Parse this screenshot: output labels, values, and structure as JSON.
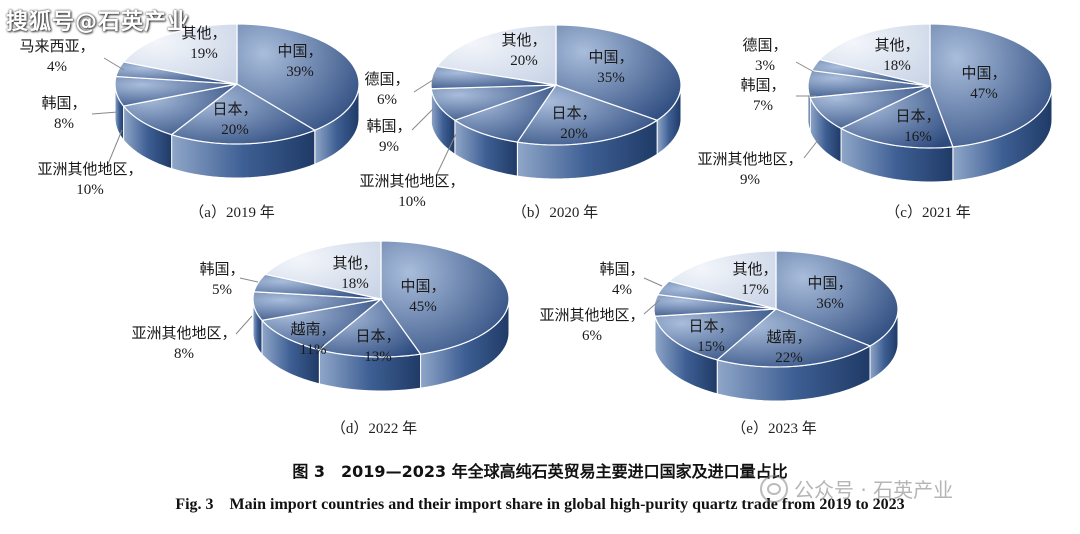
{
  "watermark_top": "搜狐号@石英产业",
  "watermark_bottom": "公众号 · 石英产业",
  "caption_cn": "图 3　2019—2023 年全球高纯石英贸易主要进口国家及进口量占比",
  "caption_en": "Fig. 3　Main import countries and their import share in global high-purity quartz trade from 2019 to 2023",
  "colors": {
    "slice_light": "#a9bddb",
    "slice_dark": "#2c4a7e",
    "top_other": "#e6ebf3",
    "edge": "#ffffff"
  },
  "chart_data": [
    {
      "type": "pie",
      "subtitle": "（a）2019 年",
      "slices": [
        {
          "label": "中国，",
          "value": 39
        },
        {
          "label": "日本，",
          "value": 20
        },
        {
          "label": "亚洲其他地区，",
          "value": 10
        },
        {
          "label": "韩国，",
          "value": 8
        },
        {
          "label": "马来西亚，",
          "value": 4
        },
        {
          "label": "其他，",
          "value": 19
        }
      ]
    },
    {
      "type": "pie",
      "subtitle": "（b）2020 年",
      "slices": [
        {
          "label": "中国，",
          "value": 35
        },
        {
          "label": "日本，",
          "value": 20
        },
        {
          "label": "亚洲其他地区，",
          "value": 10
        },
        {
          "label": "韩国，",
          "value": 9
        },
        {
          "label": "德国，",
          "value": 6
        },
        {
          "label": "其他，",
          "value": 20
        }
      ]
    },
    {
      "type": "pie",
      "subtitle": "（c）2021 年",
      "slices": [
        {
          "label": "中国，",
          "value": 47
        },
        {
          "label": "日本，",
          "value": 16
        },
        {
          "label": "亚洲其他地区，",
          "value": 9
        },
        {
          "label": "韩国，",
          "value": 7
        },
        {
          "label": "德国，",
          "value": 3
        },
        {
          "label": "其他，",
          "value": 18
        }
      ]
    },
    {
      "type": "pie",
      "subtitle": "（d）2022 年",
      "slices": [
        {
          "label": "中国，",
          "value": 45
        },
        {
          "label": "日本，",
          "value": 13
        },
        {
          "label": "越南，",
          "value": 11
        },
        {
          "label": "亚洲其他地区，",
          "value": 8
        },
        {
          "label": "韩国，",
          "value": 5
        },
        {
          "label": "其他，",
          "value": 18
        }
      ]
    },
    {
      "type": "pie",
      "subtitle": "（e）2023 年",
      "slices": [
        {
          "label": "中国，",
          "value": 36
        },
        {
          "label": "越南，",
          "value": 22
        },
        {
          "label": "日本，",
          "value": 15
        },
        {
          "label": "亚洲其他地区，",
          "value": 6
        },
        {
          "label": "韩国，",
          "value": 4
        },
        {
          "label": "其他，",
          "value": 17
        }
      ]
    }
  ]
}
